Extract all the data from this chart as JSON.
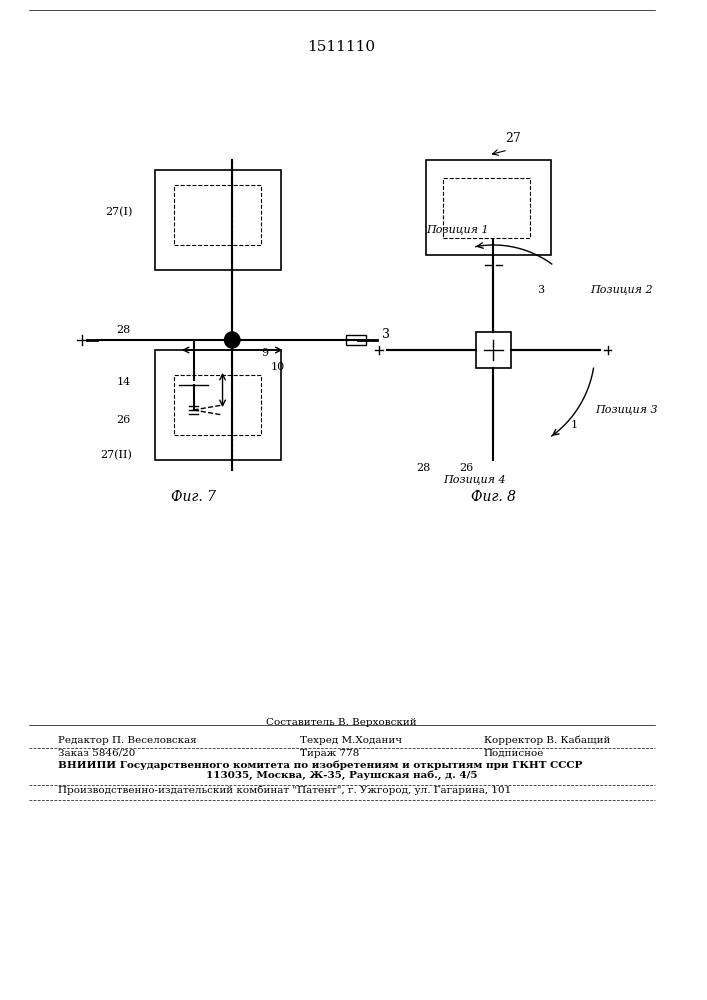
{
  "patent_number": "1511110",
  "bg_color": "#ffffff",
  "line_color": "#000000",
  "fig7_label": "Фиг. 7",
  "fig8_label": "Фиг. 8",
  "footer_line1_left": "Редактор П. Веселовская",
  "footer_line1_center": "Техред М.Ходанич",
  "footer_line1_center_top": "Составитель В. Верховский",
  "footer_line1_right": "Корректор В. Кабащий",
  "footer_line2_left": "Заказ 5846/20",
  "footer_line2_center": "Тираж 778",
  "footer_line2_right": "Подписное",
  "footer_line3": "ВНИИПИ Государственного комитета по изобретениям и открытиям при ГКНТ СССР",
  "footer_line4": "113035, Москва, Ж-35, Раушская наб., д. 4/5",
  "footer_line5": "Производственно-издательский комбинат \"Патент\", г. Ужгород, ул. Гагарина, 101"
}
